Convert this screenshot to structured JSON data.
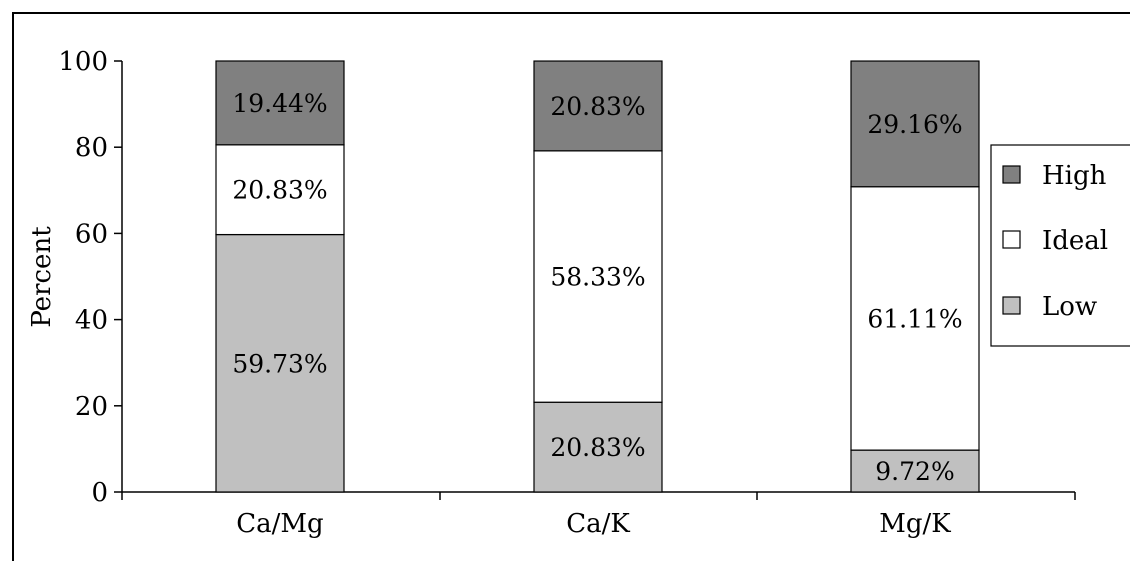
{
  "chart_data": {
    "type": "bar",
    "stacked": true,
    "categories": [
      "Ca/Mg",
      "Ca/K",
      "Mg/K"
    ],
    "series": [
      {
        "name": "Low",
        "values": [
          59.73,
          20.83,
          9.72
        ],
        "color": "#c0c0c0"
      },
      {
        "name": "Ideal",
        "values": [
          20.83,
          58.33,
          61.11
        ],
        "color": "#ffffff"
      },
      {
        "name": "High",
        "values": [
          19.44,
          20.83,
          29.16
        ],
        "color": "#808080"
      }
    ],
    "data_labels": [
      [
        "59.73%",
        "20.83%",
        "9.72%"
      ],
      [
        "20.83%",
        "58.33%",
        "61.11%"
      ],
      [
        "19.44%",
        "20.83%",
        "29.16%"
      ]
    ],
    "legend_order": [
      "High",
      "Ideal",
      "Low"
    ],
    "legend_position": "right",
    "ylabel": "Percent",
    "xlabel": "",
    "ylim": [
      0,
      100
    ],
    "yticks": [
      "0",
      "20",
      "40",
      "60",
      "80",
      "100"
    ],
    "grid": false
  }
}
